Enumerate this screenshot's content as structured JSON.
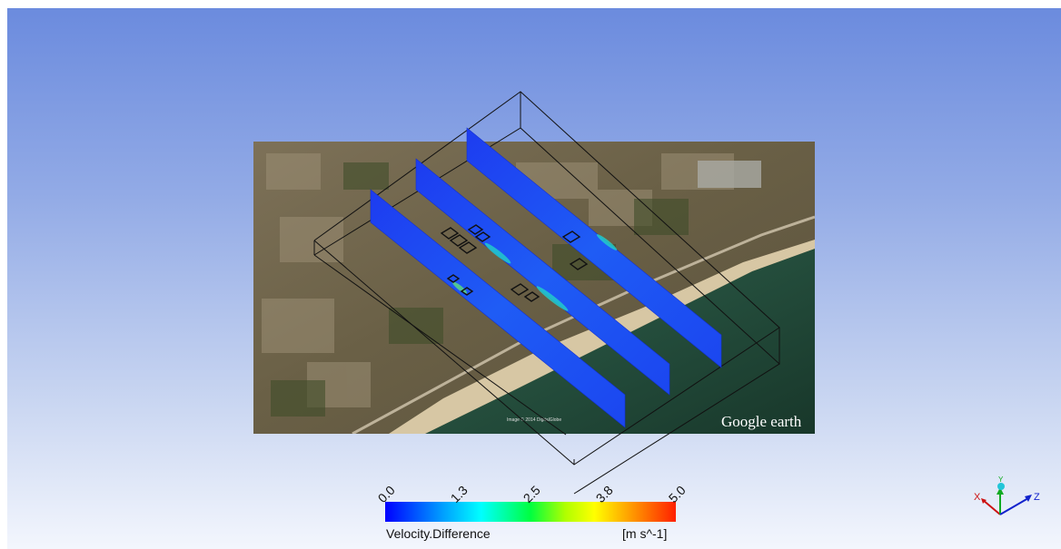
{
  "overlay": {
    "watermark": "Google earth",
    "attribution": "Image © 2014 DigitalGlobe"
  },
  "legend": {
    "variable": "Velocity.Difference",
    "units": "[m s^-1]",
    "ticks": [
      "0.0",
      "1.3",
      "2.5",
      "3.8",
      "5.0"
    ],
    "range": [
      0.0,
      5.0
    ],
    "colors": [
      "#0000ff",
      "#00a0ff",
      "#00ffff",
      "#00ff40",
      "#b0ff00",
      "#ffff00",
      "#ff9000",
      "#ff2000"
    ]
  },
  "axes": {
    "x_label": "X",
    "y_label": "Y",
    "z_label": "Z",
    "x_color": "#cc1111",
    "y_color": "#11aa22",
    "z_color": "#1122cc"
  },
  "planes": {
    "count": 3,
    "color": "#1a4cf5"
  }
}
